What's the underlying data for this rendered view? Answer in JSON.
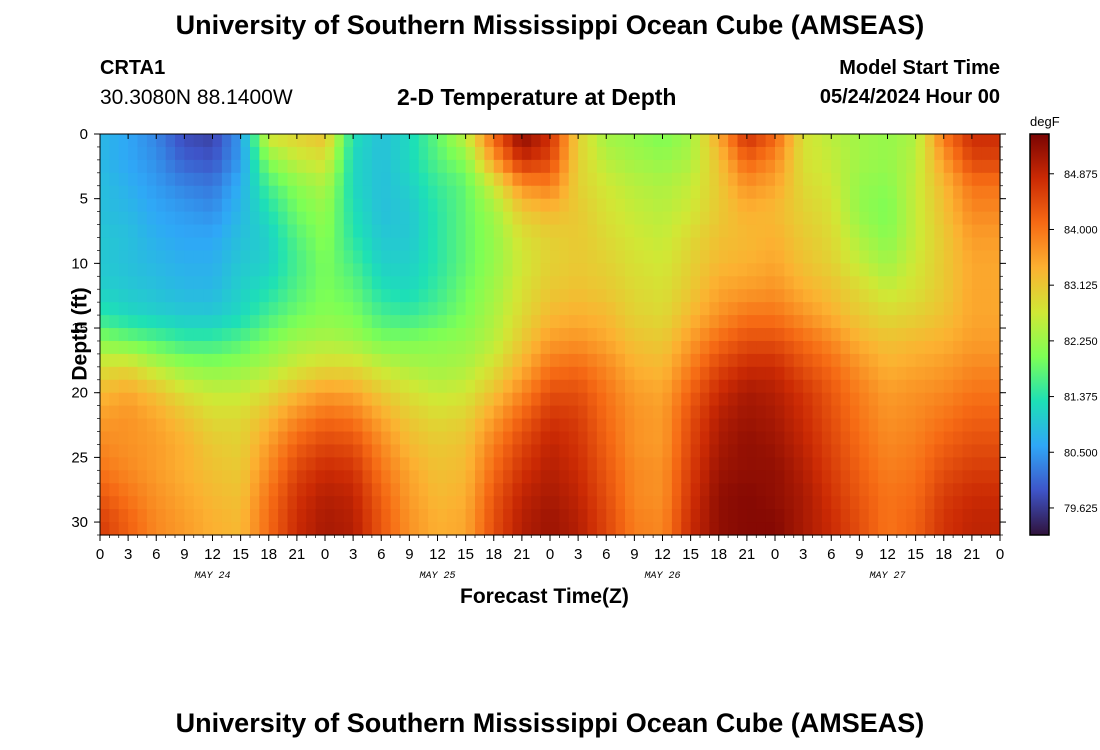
{
  "header": {
    "title": "University of Southern Mississippi Ocean Cube (AMSEAS)",
    "station_id": "CRTA1",
    "coords": "30.3080N  88.1400W",
    "plot_title": "2-D Temperature at Depth",
    "model_start_label": "Model Start Time",
    "model_start_value": "05/24/2024 Hour 00"
  },
  "footer": {
    "title": "University of Southern Mississippi Ocean Cube (AMSEAS)"
  },
  "chart_data": {
    "type": "heatmap",
    "title": "2-D Temperature at Depth",
    "xlabel": "Forecast Time(Z)",
    "ylabel": "Depth (ft)",
    "x_range_hours": [
      0,
      96
    ],
    "ylim": [
      0,
      31
    ],
    "x_tick_labels": [
      "0",
      "3",
      "6",
      "9",
      "12",
      "15",
      "18",
      "21",
      "0",
      "3",
      "6",
      "9",
      "12",
      "15",
      "18",
      "21",
      "0",
      "3",
      "6",
      "9",
      "12",
      "15",
      "18",
      "21",
      "0",
      "3",
      "6",
      "9",
      "12",
      "15",
      "18",
      "21",
      "0"
    ],
    "date_labels": [
      "MAY 24",
      "MAY 25",
      "MAY 26",
      "MAY 27"
    ],
    "y_tick_labels": [
      "0",
      "5",
      "10",
      "15",
      "20",
      "25",
      "30"
    ],
    "y_tick_values": [
      0,
      5,
      10,
      15,
      20,
      25,
      30
    ],
    "colorbar": {
      "unit": "degF",
      "range": [
        79.2,
        85.5
      ],
      "tick_values": [
        84.875,
        84.0,
        83.125,
        82.25,
        81.375,
        80.5,
        79.625
      ],
      "tick_labels": [
        "84.875",
        "84.000",
        "83.125",
        "82.250",
        "81.375",
        "80.500",
        "79.625"
      ],
      "colors": [
        "#30123b",
        "#3e54c8",
        "#2fa7f7",
        "#1de0b6",
        "#7dff55",
        "#d0e835",
        "#fcb131",
        "#f66a14",
        "#cb2a04",
        "#7a0403"
      ]
    },
    "depths_ft": [
      0,
      2,
      4,
      6,
      8,
      10,
      12,
      14,
      16,
      18,
      20,
      22,
      24,
      26,
      28,
      30,
      31
    ],
    "hours": [
      0,
      3,
      6,
      9,
      12,
      15,
      18,
      21,
      24,
      27,
      30,
      33,
      36,
      39,
      42,
      45,
      48,
      51,
      54,
      57,
      60,
      63,
      66,
      69,
      72,
      75,
      78,
      81,
      84,
      87,
      90,
      93,
      96
    ],
    "temperature_f": [
      [
        80.8,
        80.6,
        80.3,
        79.8,
        79.7,
        80.5,
        82.8,
        83.0,
        83.2,
        81.3,
        80.9,
        81.2,
        81.8,
        82.6,
        84.2,
        85.4,
        84.8,
        83.0,
        82.3,
        82.2,
        82.0,
        82.3,
        83.5,
        84.8,
        84.2,
        82.8,
        82.5,
        82.3,
        82.2,
        82.4,
        84.0,
        84.8,
        84.8
      ],
      [
        80.8,
        80.6,
        80.4,
        80.0,
        79.9,
        80.5,
        82.1,
        82.6,
        82.8,
        81.2,
        80.9,
        81.2,
        81.7,
        82.1,
        83.6,
        84.8,
        84.5,
        83.0,
        82.5,
        82.3,
        82.2,
        82.4,
        83.2,
        84.2,
        83.8,
        82.8,
        82.6,
        82.3,
        82.2,
        82.5,
        83.6,
        84.5,
        84.5
      ],
      [
        80.9,
        80.7,
        80.5,
        80.3,
        80.2,
        80.7,
        81.6,
        82.1,
        82.4,
        81.2,
        80.9,
        81.1,
        81.5,
        81.8,
        82.7,
        83.7,
        83.9,
        83.0,
        82.7,
        82.5,
        82.4,
        82.6,
        83.1,
        83.7,
        83.5,
        82.9,
        82.7,
        82.2,
        82.1,
        82.6,
        83.3,
        84.0,
        84.0
      ],
      [
        80.9,
        80.8,
        80.6,
        80.5,
        80.4,
        80.8,
        81.3,
        81.9,
        82.2,
        81.3,
        80.9,
        81.0,
        81.4,
        81.8,
        82.3,
        83.1,
        83.3,
        83.1,
        82.8,
        82.6,
        82.5,
        82.7,
        83.1,
        83.4,
        83.3,
        83.0,
        82.8,
        82.2,
        82.0,
        82.6,
        83.2,
        83.8,
        83.8
      ],
      [
        81.0,
        80.9,
        80.7,
        80.6,
        80.6,
        80.9,
        81.1,
        81.7,
        82.1,
        81.4,
        81.0,
        81.0,
        81.4,
        81.8,
        82.2,
        82.8,
        83.0,
        83.1,
        82.9,
        82.7,
        82.6,
        82.9,
        83.2,
        83.3,
        83.4,
        83.1,
        82.9,
        82.4,
        82.1,
        82.6,
        83.1,
        83.6,
        83.6
      ],
      [
        81.0,
        80.9,
        80.8,
        80.7,
        80.7,
        81.0,
        81.1,
        81.6,
        82.0,
        81.6,
        81.1,
        81.1,
        81.4,
        81.8,
        82.2,
        82.7,
        83.0,
        83.1,
        83.0,
        82.8,
        82.7,
        83.0,
        83.3,
        83.4,
        83.5,
        83.2,
        83.0,
        82.6,
        82.3,
        82.7,
        83.1,
        83.5,
        83.5
      ],
      [
        81.1,
        81.0,
        80.9,
        80.8,
        80.8,
        81.1,
        81.3,
        81.7,
        82.0,
        81.8,
        81.3,
        81.2,
        81.5,
        81.9,
        82.3,
        82.8,
        83.1,
        83.2,
        83.1,
        82.9,
        82.8,
        83.1,
        83.5,
        83.6,
        83.7,
        83.4,
        83.2,
        82.9,
        82.6,
        82.8,
        83.1,
        83.5,
        83.5
      ],
      [
        81.4,
        81.2,
        81.1,
        81.0,
        81.0,
        81.2,
        81.6,
        81.9,
        82.1,
        82.0,
        81.6,
        81.5,
        81.7,
        82.0,
        82.4,
        82.9,
        83.3,
        83.4,
        83.3,
        83.0,
        82.9,
        83.3,
        83.7,
        84.0,
        84.0,
        83.7,
        83.4,
        83.1,
        82.9,
        83.0,
        83.2,
        83.5,
        83.5
      ],
      [
        82.1,
        81.9,
        81.7,
        81.5,
        81.5,
        81.7,
        82.0,
        82.3,
        82.4,
        82.3,
        82.0,
        82.0,
        82.1,
        82.2,
        82.5,
        83.1,
        83.6,
        83.7,
        83.5,
        83.2,
        83.1,
        83.6,
        84.1,
        84.4,
        84.4,
        84.1,
        83.8,
        83.4,
        83.2,
        83.3,
        83.4,
        83.6,
        83.6
      ],
      [
        82.8,
        82.9,
        82.5,
        82.2,
        82.1,
        82.2,
        82.4,
        82.7,
        82.9,
        82.9,
        82.6,
        82.4,
        82.3,
        82.4,
        82.8,
        83.4,
        84.0,
        84.1,
        83.8,
        83.4,
        83.3,
        83.9,
        84.5,
        84.8,
        84.8,
        84.4,
        84.1,
        83.7,
        83.4,
        83.5,
        83.6,
        83.8,
        83.8
      ],
      [
        83.3,
        83.5,
        83.2,
        82.8,
        82.6,
        82.6,
        82.9,
        83.3,
        83.6,
        83.5,
        83.1,
        82.8,
        82.6,
        82.7,
        83.2,
        83.8,
        84.4,
        84.4,
        84.0,
        83.6,
        83.5,
        84.2,
        84.8,
        85.1,
        85.0,
        84.7,
        84.3,
        83.9,
        83.6,
        83.7,
        83.8,
        84.0,
        84.0
      ],
      [
        83.6,
        83.7,
        83.5,
        83.2,
        82.9,
        82.9,
        83.3,
        83.8,
        84.1,
        84.0,
        83.5,
        83.1,
        82.9,
        83.0,
        83.6,
        84.2,
        84.7,
        84.6,
        84.1,
        83.7,
        83.6,
        84.4,
        85.0,
        85.2,
        85.1,
        84.8,
        84.4,
        84.0,
        83.7,
        83.8,
        84.0,
        84.2,
        84.2
      ],
      [
        83.8,
        83.7,
        83.6,
        83.4,
        83.1,
        83.0,
        83.6,
        84.2,
        84.5,
        84.4,
        83.8,
        83.3,
        83.1,
        83.2,
        83.9,
        84.5,
        84.9,
        84.7,
        84.2,
        83.7,
        83.6,
        84.5,
        85.1,
        85.3,
        85.2,
        84.9,
        84.5,
        84.1,
        83.8,
        83.9,
        84.2,
        84.4,
        84.4
      ],
      [
        84.0,
        83.8,
        83.6,
        83.4,
        83.2,
        83.1,
        83.8,
        84.5,
        84.8,
        84.7,
        84.0,
        83.5,
        83.2,
        83.3,
        84.1,
        84.7,
        85.0,
        84.8,
        84.3,
        83.8,
        83.7,
        84.6,
        85.2,
        85.3,
        85.3,
        85.0,
        84.6,
        84.2,
        83.9,
        84.0,
        84.4,
        84.6,
        84.6
      ],
      [
        84.3,
        84.0,
        83.7,
        83.5,
        83.3,
        83.2,
        84.0,
        84.7,
        85.0,
        84.9,
        84.2,
        83.6,
        83.3,
        83.4,
        84.3,
        84.9,
        85.1,
        84.9,
        84.4,
        83.8,
        83.7,
        84.7,
        85.3,
        85.4,
        85.3,
        85.1,
        84.7,
        84.3,
        84.0,
        84.1,
        84.6,
        84.8,
        84.8
      ],
      [
        84.6,
        84.2,
        83.8,
        83.6,
        83.4,
        83.3,
        84.1,
        84.8,
        85.1,
        85.0,
        84.3,
        83.7,
        83.4,
        83.5,
        84.4,
        85.0,
        85.2,
        85.0,
        84.5,
        83.9,
        83.8,
        84.8,
        85.3,
        85.4,
        85.4,
        85.1,
        84.8,
        84.4,
        84.0,
        84.2,
        84.7,
        84.9,
        84.9
      ],
      [
        84.6,
        84.2,
        83.8,
        83.6,
        83.4,
        83.3,
        84.1,
        84.8,
        85.1,
        85.0,
        84.3,
        83.7,
        83.4,
        83.5,
        84.4,
        85.0,
        85.2,
        85.0,
        84.5,
        83.9,
        83.8,
        84.8,
        85.3,
        85.4,
        85.4,
        85.1,
        84.8,
        84.4,
        84.0,
        84.2,
        84.7,
        84.9,
        84.9
      ]
    ]
  }
}
